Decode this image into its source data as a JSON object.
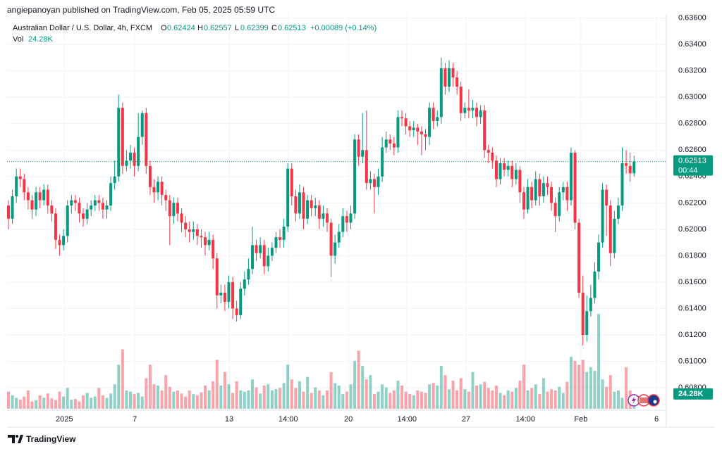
{
  "chart_data": {
    "type": "candlestick",
    "attribution": "angiepanoyan published on TradingView.com, Feb 05, 2025 05:59 UTC",
    "symbol": "Australian Dollar / U.S. Dollar, 4h, FXCM",
    "ohlc_labels": [
      "O",
      "H",
      "L",
      "C"
    ],
    "ohlc_values": [
      0.62424,
      0.62557,
      0.62399,
      0.62513
    ],
    "change_label": "+0.00089 (+0.14%)",
    "volume_label": "Vol",
    "last_volume_label": "24.28K",
    "countdown": "00:44",
    "footer": "TradingView",
    "up_color": "#089981",
    "down_color": "#f23645",
    "grid": true,
    "xlim": [
      -0.36,
      167.2
    ],
    "ylim": [
      0.6063,
      0.6363
    ],
    "yticks": [
      {
        "value": 0.636,
        "label": "0.63600"
      },
      {
        "value": 0.634,
        "label": "0.63400"
      },
      {
        "value": 0.632,
        "label": "0.63200"
      },
      {
        "value": 0.63,
        "label": "0.63000"
      },
      {
        "value": 0.628,
        "label": "0.62800"
      },
      {
        "value": 0.626,
        "label": "0.62600"
      },
      {
        "value": 0.624,
        "label": "0.62400"
      },
      {
        "value": 0.622,
        "label": "0.62200"
      },
      {
        "value": 0.62,
        "label": "0.62000"
      },
      {
        "value": 0.618,
        "label": "0.61800"
      },
      {
        "value": 0.616,
        "label": "0.61600"
      },
      {
        "value": 0.614,
        "label": "0.61400"
      },
      {
        "value": 0.612,
        "label": "0.61200"
      },
      {
        "value": 0.61,
        "label": "0.61000"
      },
      {
        "value": 0.608,
        "label": "0.60800"
      }
    ],
    "xticks": [
      {
        "value": 14.2,
        "label": "2025"
      },
      {
        "value": 32.1,
        "label": "7"
      },
      {
        "value": 56.1,
        "label": "13"
      },
      {
        "value": 71.1,
        "label": "14:00"
      },
      {
        "value": 86.4,
        "label": "20"
      },
      {
        "value": 101.3,
        "label": "14:00"
      },
      {
        "value": 116.3,
        "label": "27"
      },
      {
        "value": 131.4,
        "label": "14:00"
      },
      {
        "value": 145.5,
        "label": "Feb"
      },
      {
        "value": 164.7,
        "label": "6"
      }
    ],
    "open": [
      0.6218,
      0.6208,
      0.6225,
      0.624,
      0.6238,
      0.6228,
      0.6222,
      0.6215,
      0.6228,
      0.6222,
      0.623,
      0.6218,
      0.6212,
      0.6192,
      0.6188,
      0.6195,
      0.6218,
      0.6222,
      0.622,
      0.6212,
      0.6208,
      0.6215,
      0.6218,
      0.6222,
      0.622,
      0.6215,
      0.6218,
      0.6235,
      0.624,
      0.6292,
      0.6248,
      0.6252,
      0.6258,
      0.6248,
      0.627,
      0.6288,
      0.6248,
      0.6232,
      0.6228,
      0.6236,
      0.6226,
      0.6222,
      0.621,
      0.622,
      0.6212,
      0.6205,
      0.62,
      0.6198,
      0.62,
      0.6195,
      0.6194,
      0.6188,
      0.6192,
      0.6178,
      0.615,
      0.6152,
      0.6145,
      0.616,
      0.614,
      0.6135,
      0.6155,
      0.6162,
      0.617,
      0.6188,
      0.6182,
      0.6188,
      0.6172,
      0.618,
      0.6186,
      0.6194,
      0.6192,
      0.6202,
      0.6246,
      0.6225,
      0.6212,
      0.6228,
      0.6208,
      0.6222,
      0.6216,
      0.6218,
      0.6208,
      0.6212,
      0.6205,
      0.618,
      0.619,
      0.6198,
      0.621,
      0.6205,
      0.6212,
      0.6268,
      0.6255,
      0.626,
      0.6235,
      0.6238,
      0.6232,
      0.624,
      0.6262,
      0.6268,
      0.6265,
      0.6262,
      0.6285,
      0.6284,
      0.6278,
      0.6275,
      0.6277,
      0.6274,
      0.6272,
      0.627,
      0.6292,
      0.6282,
      0.6285,
      0.6322,
      0.6308,
      0.6322,
      0.6315,
      0.6308,
      0.6288,
      0.6292,
      0.629,
      0.6292,
      0.6285,
      0.629,
      0.626,
      0.6258,
      0.6252,
      0.6238,
      0.625,
      0.6245,
      0.6248,
      0.6238,
      0.6245,
      0.6228,
      0.6215,
      0.6232,
      0.6222,
      0.6238,
      0.6225,
      0.6235,
      0.6232,
      0.622,
      0.621,
      0.6228,
      0.6232,
      0.6222,
      0.6258,
      0.6205,
      0.6152,
      0.612,
      0.6138,
      0.6148,
      0.6168,
      0.619,
      0.623,
      0.6218,
      0.6182,
      0.6208,
      0.6218,
      0.625,
      0.6248,
      0.62424
    ],
    "high": [
      0.6222,
      0.623,
      0.6246,
      0.6246,
      0.6242,
      0.6232,
      0.6226,
      0.6232,
      0.6232,
      0.6234,
      0.6234,
      0.6222,
      0.6216,
      0.6196,
      0.62,
      0.6222,
      0.6226,
      0.6226,
      0.6224,
      0.6216,
      0.622,
      0.6222,
      0.6226,
      0.6226,
      0.6224,
      0.6222,
      0.624,
      0.6252,
      0.6302,
      0.6296,
      0.626,
      0.6264,
      0.6262,
      0.6288,
      0.629,
      0.6292,
      0.6252,
      0.6238,
      0.624,
      0.624,
      0.623,
      0.6226,
      0.6224,
      0.6224,
      0.6216,
      0.621,
      0.6206,
      0.6206,
      0.6204,
      0.62,
      0.6198,
      0.6198,
      0.6196,
      0.6182,
      0.6158,
      0.6158,
      0.6165,
      0.6164,
      0.6146,
      0.616,
      0.6168,
      0.6178,
      0.6202,
      0.6192,
      0.6194,
      0.6192,
      0.6186,
      0.619,
      0.6198,
      0.62,
      0.6208,
      0.625,
      0.625,
      0.623,
      0.6234,
      0.6232,
      0.6226,
      0.6226,
      0.6224,
      0.6222,
      0.6218,
      0.6216,
      0.6208,
      0.6196,
      0.6204,
      0.6216,
      0.6214,
      0.6218,
      0.6272,
      0.6272,
      0.6288,
      0.629,
      0.6244,
      0.6242,
      0.6246,
      0.627,
      0.6274,
      0.6272,
      0.627,
      0.629,
      0.629,
      0.6288,
      0.6282,
      0.6282,
      0.628,
      0.6278,
      0.6276,
      0.6296,
      0.6296,
      0.629,
      0.633,
      0.6326,
      0.6328,
      0.6326,
      0.632,
      0.6312,
      0.6296,
      0.6306,
      0.6298,
      0.6296,
      0.6294,
      0.6294,
      0.6264,
      0.6262,
      0.6256,
      0.6254,
      0.6254,
      0.6252,
      0.6252,
      0.625,
      0.6248,
      0.6232,
      0.6238,
      0.6236,
      0.6244,
      0.6242,
      0.624,
      0.624,
      0.6236,
      0.6224,
      0.6232,
      0.6236,
      0.6236,
      0.6262,
      0.626,
      0.6208,
      0.6165,
      0.615,
      0.6158,
      0.6175,
      0.6196,
      0.6235,
      0.6234,
      0.6222,
      0.6214,
      0.6224,
      0.6262,
      0.626,
      0.6258,
      0.62557
    ],
    "low": [
      0.62,
      0.6204,
      0.622,
      0.6232,
      0.6222,
      0.6215,
      0.6208,
      0.621,
      0.6216,
      0.6218,
      0.6212,
      0.6206,
      0.6185,
      0.618,
      0.6184,
      0.619,
      0.6212,
      0.6214,
      0.6205,
      0.6202,
      0.6204,
      0.621,
      0.6214,
      0.6214,
      0.6208,
      0.6208,
      0.6214,
      0.623,
      0.6236,
      0.6242,
      0.6244,
      0.6246,
      0.624,
      0.6244,
      0.6264,
      0.6242,
      0.6226,
      0.622,
      0.6222,
      0.6218,
      0.6214,
      0.6188,
      0.6204,
      0.6206,
      0.6198,
      0.6194,
      0.619,
      0.6192,
      0.6188,
      0.6186,
      0.618,
      0.6184,
      0.617,
      0.614,
      0.6144,
      0.6138,
      0.614,
      0.6132,
      0.613,
      0.6132,
      0.615,
      0.6158,
      0.6166,
      0.6176,
      0.6178,
      0.6166,
      0.6168,
      0.6176,
      0.6182,
      0.6186,
      0.6186,
      0.6198,
      0.6218,
      0.6206,
      0.6208,
      0.62,
      0.6204,
      0.621,
      0.621,
      0.62,
      0.6202,
      0.6198,
      0.6164,
      0.6174,
      0.6186,
      0.6194,
      0.6198,
      0.62,
      0.6208,
      0.6248,
      0.625,
      0.623,
      0.623,
      0.6212,
      0.6226,
      0.6236,
      0.6258,
      0.626,
      0.6256,
      0.6258,
      0.6278,
      0.6272,
      0.627,
      0.627,
      0.6264,
      0.6256,
      0.626,
      0.6264,
      0.6276,
      0.6278,
      0.628,
      0.6302,
      0.6304,
      0.6308,
      0.6302,
      0.6282,
      0.6284,
      0.6284,
      0.6284,
      0.6278,
      0.628,
      0.6254,
      0.625,
      0.6246,
      0.6232,
      0.6234,
      0.624,
      0.624,
      0.6232,
      0.6234,
      0.622,
      0.6208,
      0.6212,
      0.6216,
      0.6218,
      0.6218,
      0.622,
      0.6226,
      0.6214,
      0.6198,
      0.6206,
      0.6222,
      0.6214,
      0.6218,
      0.62,
      0.6148,
      0.6112,
      0.6115,
      0.6134,
      0.6144,
      0.6162,
      0.6186,
      0.6195,
      0.6172,
      0.6178,
      0.6204,
      0.6214,
      0.6242,
      0.6236,
      0.62399
    ],
    "close": [
      0.6208,
      0.6225,
      0.624,
      0.6238,
      0.6228,
      0.6222,
      0.6215,
      0.6228,
      0.6222,
      0.623,
      0.6218,
      0.6212,
      0.6192,
      0.6188,
      0.6195,
      0.6218,
      0.6222,
      0.622,
      0.6212,
      0.6208,
      0.6215,
      0.6218,
      0.6222,
      0.622,
      0.6215,
      0.6218,
      0.6235,
      0.624,
      0.6292,
      0.6248,
      0.6252,
      0.6258,
      0.6248,
      0.627,
      0.6288,
      0.6248,
      0.6232,
      0.6228,
      0.6236,
      0.6226,
      0.6222,
      0.621,
      0.622,
      0.6212,
      0.6205,
      0.62,
      0.6198,
      0.62,
      0.6195,
      0.6194,
      0.6188,
      0.6192,
      0.6178,
      0.615,
      0.6152,
      0.6145,
      0.616,
      0.614,
      0.6135,
      0.6155,
      0.6162,
      0.617,
      0.6188,
      0.6182,
      0.6188,
      0.6172,
      0.618,
      0.6186,
      0.6194,
      0.6192,
      0.6202,
      0.6246,
      0.6225,
      0.6212,
      0.6228,
      0.6208,
      0.6222,
      0.6216,
      0.6218,
      0.6208,
      0.6212,
      0.6205,
      0.618,
      0.619,
      0.6198,
      0.621,
      0.6205,
      0.6212,
      0.6268,
      0.6255,
      0.626,
      0.6235,
      0.6238,
      0.6232,
      0.624,
      0.6262,
      0.6268,
      0.6265,
      0.6262,
      0.6285,
      0.6284,
      0.6278,
      0.6275,
      0.6277,
      0.6274,
      0.6272,
      0.627,
      0.6292,
      0.6282,
      0.6285,
      0.6322,
      0.6308,
      0.6322,
      0.6315,
      0.6308,
      0.6288,
      0.6292,
      0.629,
      0.6292,
      0.6285,
      0.629,
      0.626,
      0.6258,
      0.6252,
      0.6238,
      0.625,
      0.6245,
      0.6248,
      0.6238,
      0.6245,
      0.6228,
      0.6215,
      0.6232,
      0.6222,
      0.6238,
      0.6225,
      0.6235,
      0.6232,
      0.622,
      0.621,
      0.6228,
      0.6232,
      0.6222,
      0.6258,
      0.6205,
      0.6152,
      0.612,
      0.6138,
      0.6148,
      0.6168,
      0.619,
      0.623,
      0.6218,
      0.6182,
      0.6208,
      0.6218,
      0.625,
      0.6248,
      0.62424,
      0.62513
    ],
    "volume": [
      28,
      22,
      18,
      15,
      20,
      30,
      12,
      14,
      22,
      18,
      25,
      17,
      14,
      28,
      20,
      34,
      15,
      16,
      12,
      22,
      26,
      18,
      20,
      34,
      22,
      18,
      25,
      40,
      72,
      97,
      30,
      28,
      24,
      26,
      20,
      50,
      72,
      40,
      38,
      30,
      55,
      36,
      28,
      30,
      25,
      20,
      30,
      24,
      22,
      27,
      38,
      30,
      45,
      80,
      38,
      60,
      40,
      26,
      45,
      30,
      28,
      30,
      48,
      35,
      25,
      38,
      40,
      30,
      32,
      34,
      42,
      72,
      48,
      34,
      45,
      28,
      52,
      26,
      35,
      30,
      22,
      30,
      60,
      42,
      38,
      24,
      28,
      40,
      78,
      95,
      70,
      48,
      55,
      24,
      28,
      40,
      35,
      26,
      30,
      46,
      38,
      28,
      24,
      22,
      30,
      28,
      26,
      40,
      42,
      38,
      70,
      55,
      32,
      46,
      30,
      50,
      32,
      28,
      60,
      38,
      40,
      44,
      34,
      30,
      38,
      26,
      22,
      30,
      28,
      34,
      46,
      72,
      30,
      34,
      40,
      24,
      50,
      28,
      32,
      30,
      36,
      26,
      44,
      85,
      78,
      72,
      80,
      60,
      68,
      62,
      155,
      48,
      36,
      55,
      28,
      30,
      18,
      68,
      30,
      24.28
    ]
  }
}
